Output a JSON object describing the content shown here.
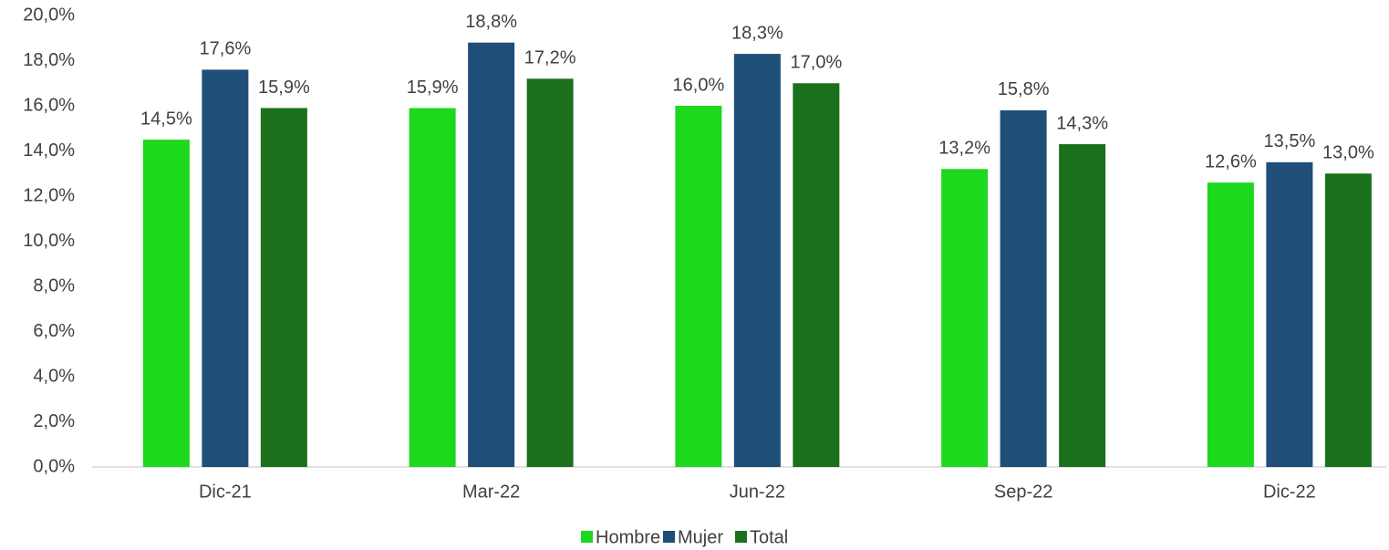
{
  "chart_data": {
    "type": "bar",
    "categories": [
      "Dic-21",
      "Mar-22",
      "Jun-22",
      "Sep-22",
      "Dic-22"
    ],
    "series": [
      {
        "name": "Hombre",
        "color": "#1ed81e",
        "values": [
          14.5,
          15.9,
          16.0,
          13.2,
          12.6
        ],
        "value_labels": [
          "14,5%",
          "15,9%",
          "16,0%",
          "13,2%",
          "12,6%"
        ]
      },
      {
        "name": "Mujer",
        "color": "#1f4e79",
        "values": [
          17.6,
          18.8,
          18.3,
          15.8,
          13.5
        ],
        "value_labels": [
          "17,6%",
          "18,8%",
          "18,3%",
          "15,8%",
          "13,5%"
        ]
      },
      {
        "name": "Total",
        "color": "#1b701b",
        "values": [
          15.9,
          17.2,
          17.0,
          14.3,
          13.0
        ],
        "value_labels": [
          "15,9%",
          "17,2%",
          "17,0%",
          "14,3%",
          "13,0%"
        ]
      }
    ],
    "ylim": [
      0,
      20
    ],
    "yticks": [
      {
        "value": 0,
        "label": "0,0%"
      },
      {
        "value": 2,
        "label": "2,0%"
      },
      {
        "value": 4,
        "label": "4,0%"
      },
      {
        "value": 6,
        "label": "6,0%"
      },
      {
        "value": 8,
        "label": "8,0%"
      },
      {
        "value": 10,
        "label": "10,0%"
      },
      {
        "value": 12,
        "label": "12,0%"
      },
      {
        "value": 14,
        "label": "14,0%"
      },
      {
        "value": 16,
        "label": "16,0%"
      },
      {
        "value": 18,
        "label": "18,0%"
      },
      {
        "value": 20,
        "label": "20,0%"
      }
    ],
    "grid": false,
    "legend": "bottom"
  }
}
